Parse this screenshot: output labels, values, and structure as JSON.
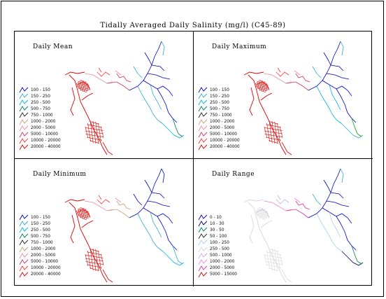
{
  "chart_data": {
    "type": "other",
    "title": "Tidally Averaged Daily Salinity (mg/l) (C45-89)",
    "panels": [
      {
        "title": "Daily Mean",
        "legend": [
          {
            "label": "100 - 150",
            "color": "#0000cc"
          },
          {
            "label": "150 - 250",
            "color": "#33aacc"
          },
          {
            "label": "250 - 500",
            "color": "#00b0e8"
          },
          {
            "label": "500 - 750",
            "color": "#007a5a"
          },
          {
            "label": "750 - 1000",
            "color": "#222222"
          },
          {
            "label": "1000 - 2000",
            "color": "#c8a070"
          },
          {
            "label": "2000 - 5000",
            "color": "#ee88aa"
          },
          {
            "label": "5000 - 10000",
            "color": "#cc3366"
          },
          {
            "label": "10000 - 20000",
            "color": "#ff3333"
          },
          {
            "label": "20000 - 40000",
            "color": "#dd0000"
          }
        ]
      },
      {
        "title": "Daily Maximum",
        "legend": [
          {
            "label": "100 - 150",
            "color": "#0000cc"
          },
          {
            "label": "150 - 250",
            "color": "#33aacc"
          },
          {
            "label": "250 - 500",
            "color": "#00b0e8"
          },
          {
            "label": "500 - 750",
            "color": "#007a5a"
          },
          {
            "label": "750 - 1000",
            "color": "#222222"
          },
          {
            "label": "1000 - 2000",
            "color": "#c8a070"
          },
          {
            "label": "2000 - 5000",
            "color": "#ee88aa"
          },
          {
            "label": "5000 - 10000",
            "color": "#cc3366"
          },
          {
            "label": "10000 - 20000",
            "color": "#ff3333"
          },
          {
            "label": "20000 - 40000",
            "color": "#dd0000"
          }
        ]
      },
      {
        "title": "Daily Minimum",
        "legend": [
          {
            "label": "100 - 150",
            "color": "#0000cc"
          },
          {
            "label": "150 - 250",
            "color": "#33aacc"
          },
          {
            "label": "250 - 500",
            "color": "#00b0e8"
          },
          {
            "label": "500 - 750",
            "color": "#007a5a"
          },
          {
            "label": "750 - 1000",
            "color": "#222222"
          },
          {
            "label": "1000 - 2000",
            "color": "#c8a070"
          },
          {
            "label": "2000 - 5000",
            "color": "#ee88aa"
          },
          {
            "label": "5000 - 10000",
            "color": "#cc3366"
          },
          {
            "label": "10000 - 20000",
            "color": "#ff3333"
          },
          {
            "label": "20000 - 40000",
            "color": "#dd0000"
          }
        ]
      },
      {
        "title": "Daily Range",
        "legend": [
          {
            "label": "0 - 10",
            "color": "#0000cc"
          },
          {
            "label": "10 - 30",
            "color": "#000066"
          },
          {
            "label": "30 - 50",
            "color": "#007a5a"
          },
          {
            "label": "50 - 100",
            "color": "#222222"
          },
          {
            "label": "100 - 250",
            "color": "#aaccee"
          },
          {
            "label": "250 - 500",
            "color": "#d8d8d8"
          },
          {
            "label": "500 - 1000",
            "color": "#ccaadd"
          },
          {
            "label": "1000 - 2000",
            "color": "#ee88cc"
          },
          {
            "label": "2000 - 5000",
            "color": "#dd3399"
          },
          {
            "label": "5000 - 15000",
            "color": "#cc0000"
          }
        ]
      }
    ]
  }
}
